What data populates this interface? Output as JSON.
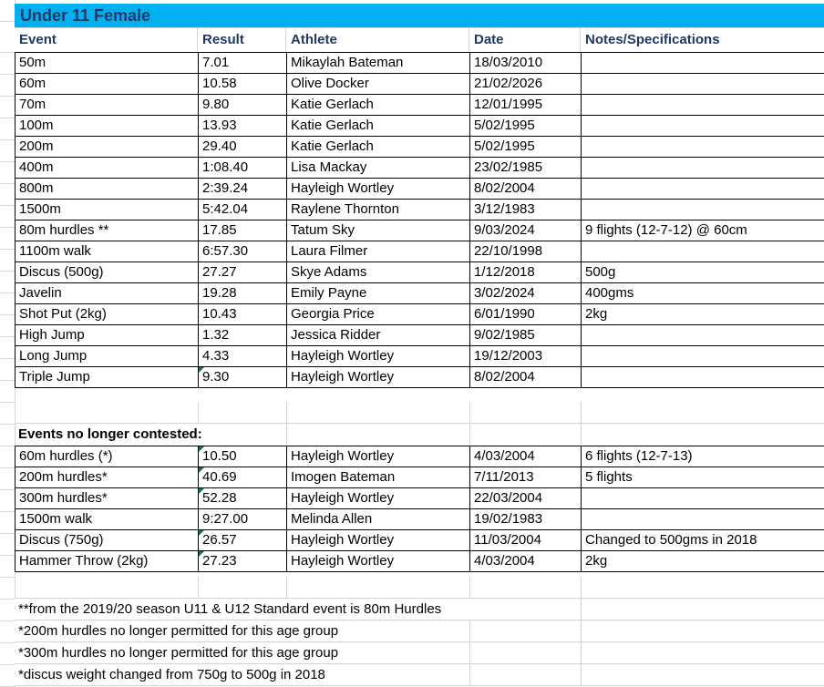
{
  "title": "Under 11 Female",
  "columns": [
    "Event",
    "Result",
    "Athlete",
    "Date",
    "Notes/Specifications"
  ],
  "records": [
    {
      "event": "50m",
      "result": "7.01",
      "athlete": "Mikaylah Bateman",
      "date": "18/03/2010",
      "notes": "",
      "flag": false
    },
    {
      "event": "60m",
      "result": "10.58",
      "athlete": "Olive Docker",
      "date": "21/02/2026",
      "notes": "",
      "flag": false
    },
    {
      "event": "70m",
      "result": "9.80",
      "athlete": "Katie Gerlach",
      "date": "12/01/1995",
      "notes": "",
      "flag": false
    },
    {
      "event": "100m",
      "result": "13.93",
      "athlete": "Katie Gerlach",
      "date": "5/02/1995",
      "notes": "",
      "flag": false
    },
    {
      "event": "200m",
      "result": "29.40",
      "athlete": "Katie Gerlach",
      "date": "5/02/1995",
      "notes": "",
      "flag": false
    },
    {
      "event": "400m",
      "result": "1:08.40",
      "athlete": "Lisa Mackay",
      "date": "23/02/1985",
      "notes": "",
      "flag": false
    },
    {
      "event": "800m",
      "result": "2:39.24",
      "athlete": "Hayleigh Wortley",
      "date": "8/02/2004",
      "notes": "",
      "flag": false
    },
    {
      "event": "1500m",
      "result": "5:42.04",
      "athlete": "Raylene Thornton",
      "date": "3/12/1983",
      "notes": "",
      "flag": false
    },
    {
      "event": "80m hurdles **",
      "result": "17.85",
      "athlete": "Tatum Sky",
      "date": "9/03/2024",
      "notes": "9 flights (12-7-12) @ 60cm",
      "flag": false
    },
    {
      "event": "1100m walk",
      "result": "6:57.30",
      "athlete": "Laura Filmer",
      "date": "22/10/1998",
      "notes": "",
      "flag": false
    },
    {
      "event": "Discus (500g)",
      "result": "27.27",
      "athlete": "Skye Adams",
      "date": "1/12/2018",
      "notes": "500g",
      "flag": false
    },
    {
      "event": "Javelin",
      "result": "19.28",
      "athlete": "Emily Payne",
      "date": "3/02/2024",
      "notes": "400gms",
      "flag": false
    },
    {
      "event": "Shot Put (2kg)",
      "result": "10.43",
      "athlete": "Georgia Price",
      "date": "6/01/1990",
      "notes": "2kg",
      "flag": false
    },
    {
      "event": "High Jump",
      "result": "1.32",
      "athlete": "Jessica Ridder",
      "date": "9/02/1985",
      "notes": "",
      "flag": false
    },
    {
      "event": "Long Jump",
      "result": "4.33",
      "athlete": "Hayleigh Wortley",
      "date": "19/12/2003",
      "notes": "",
      "flag": false
    },
    {
      "event": "Triple Jump",
      "result": "9.30",
      "athlete": "Hayleigh Wortley",
      "date": "8/02/2004",
      "notes": "",
      "flag": true
    }
  ],
  "section2": {
    "heading": "Events no longer contested:",
    "records": [
      {
        "event": "60m hurdles (*)",
        "result": "10.50",
        "athlete": "Hayleigh Wortley",
        "date": "4/03/2004",
        "notes": "6 flights (12-7-13)",
        "flag": true
      },
      {
        "event": "200m hurdles*",
        "result": "40.69",
        "athlete": "Imogen Bateman",
        "date": "7/11/2013",
        "notes": "5 flights",
        "flag": true
      },
      {
        "event": "300m hurdles*",
        "result": "52.28",
        "athlete": "Hayleigh Wortley",
        "date": "22/03/2004",
        "notes": "",
        "flag": true
      },
      {
        "event": "1500m walk",
        "result": "9:27.00",
        "athlete": "Melinda Allen",
        "date": "19/02/1983",
        "notes": "",
        "flag": false
      },
      {
        "event": "Discus (750g)",
        "result": "26.57",
        "athlete": "Hayleigh Wortley",
        "date": "11/03/2004",
        "notes": "Changed to 500gms in 2018",
        "flag": true
      },
      {
        "event": "Hammer Throw (2kg)",
        "result": "27.23",
        "athlete": "Hayleigh Wortley",
        "date": "4/03/2004",
        "notes": "2kg",
        "flag": true
      }
    ]
  },
  "footnotes": [
    "**from the 2019/20 season U11 & U12 Standard event is 80m Hurdles",
    "*200m hurdles no longer permitted for this age group",
    "*300m hurdles no longer permitted for this age group",
    "*discus weight changed from 750g to 500g in 2018"
  ],
  "colors": {
    "title_bg": "#00B0F0",
    "title_text": "#1F3864",
    "grid_black": "#000000",
    "grid_gray": "#D4D4D4",
    "flag_green": "#1E7145"
  }
}
